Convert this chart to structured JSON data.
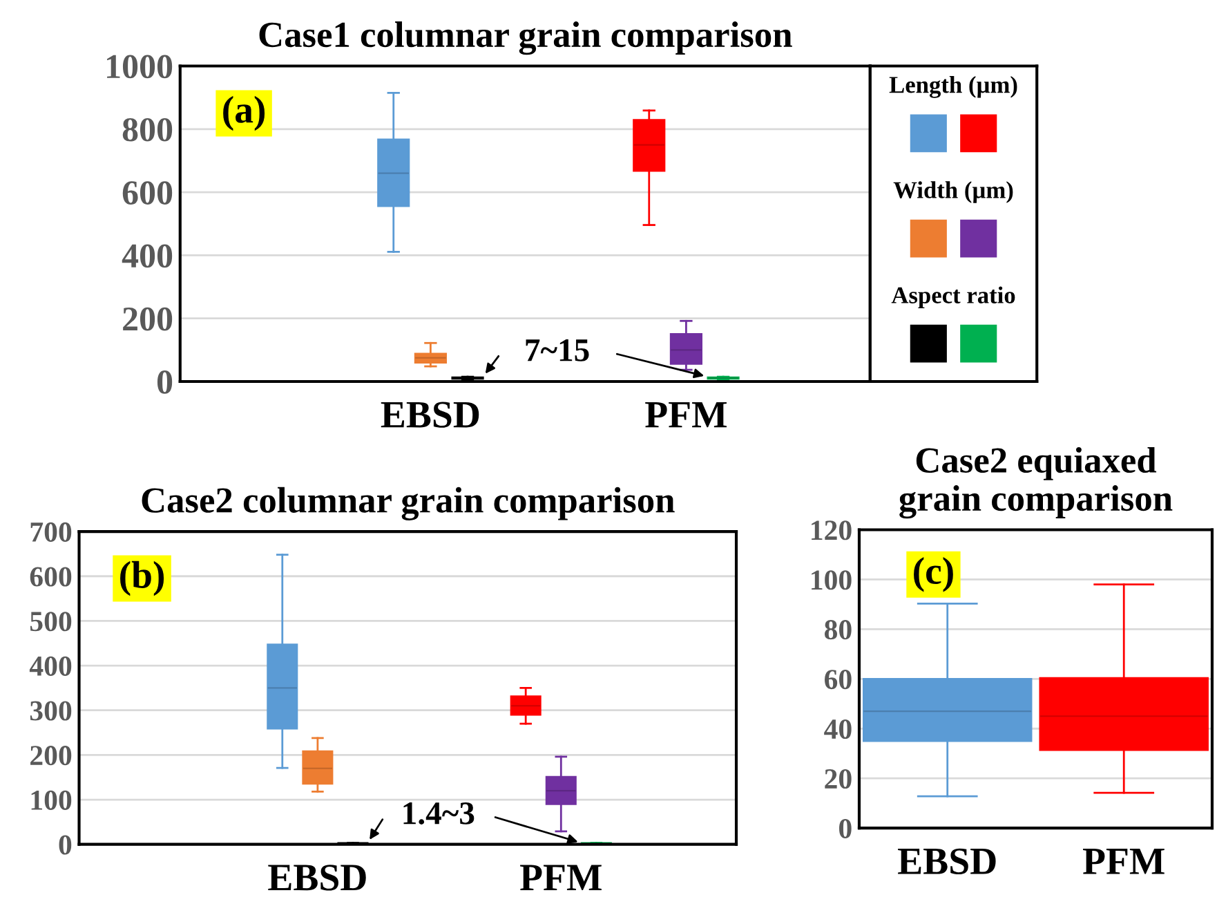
{
  "chart_data": [
    {
      "type": "box",
      "title": "Case1 columnar grain comparison",
      "categories": [
        "EBSD",
        "PFM"
      ],
      "ylim": [
        0,
        1000
      ],
      "yticks": [
        0,
        200,
        400,
        600,
        800,
        1000
      ],
      "grid": "y",
      "legend": "right",
      "annotations": [
        "(a)",
        "7~15"
      ],
      "series": [
        {
          "name": "Length (µm)",
          "colors": [
            "#5b9bd5",
            "#ff0000"
          ],
          "boxes": [
            {
              "low": 411,
              "q1": 556,
              "median": 660,
              "q3": 767,
              "high": 915
            },
            {
              "low": 496,
              "q1": 668,
              "median": 750,
              "q3": 829,
              "high": 859
            }
          ]
        },
        {
          "name": "Width (µm)",
          "colors": [
            "#ed7d31",
            "#7030a0"
          ],
          "boxes": [
            {
              "low": 48,
              "q1": 60,
              "median": 75,
              "q3": 88,
              "high": 122
            },
            {
              "low": 37,
              "q1": 56,
              "median": 100,
              "q3": 150,
              "high": 192
            }
          ]
        },
        {
          "name": "Aspect ratio",
          "colors": [
            "#000000",
            "#00b050"
          ],
          "boxes": [
            {
              "low": 7,
              "q1": 9,
              "median": 11,
              "q3": 13,
              "high": 15
            },
            {
              "low": 7,
              "q1": 9,
              "median": 11,
              "q3": 13,
              "high": 15
            }
          ]
        }
      ]
    },
    {
      "type": "box",
      "title": "Case2 columnar grain comparison",
      "categories": [
        "EBSD",
        "PFM"
      ],
      "ylim": [
        0,
        700
      ],
      "yticks": [
        0,
        100,
        200,
        300,
        400,
        500,
        600,
        700
      ],
      "grid": "y",
      "annotations": [
        "(b)",
        "1.4~3"
      ],
      "series": [
        {
          "colors": [
            "#5b9bd5",
            "#ff0000"
          ],
          "boxes": [
            {
              "low": 171,
              "q1": 259,
              "median": 350,
              "q3": 447,
              "high": 648
            },
            {
              "low": 270,
              "q1": 290,
              "median": 310,
              "q3": 331,
              "high": 350
            }
          ]
        },
        {
          "colors": [
            "#ed7d31",
            "#7030a0"
          ],
          "boxes": [
            {
              "low": 118,
              "q1": 136,
              "median": 170,
              "q3": 208,
              "high": 238
            },
            {
              "low": 29,
              "q1": 90,
              "median": 120,
              "q3": 151,
              "high": 196
            }
          ]
        },
        {
          "colors": [
            "#000000",
            "#00b050"
          ],
          "boxes": [
            {
              "low": 1.4,
              "q1": 1.8,
              "median": 2.2,
              "q3": 2.6,
              "high": 3
            },
            {
              "low": 1.4,
              "q1": 1.8,
              "median": 2.2,
              "q3": 2.6,
              "high": 3
            }
          ]
        }
      ]
    },
    {
      "type": "box",
      "title": "Case2 equiaxed grain comparison",
      "categories": [
        "EBSD",
        "PFM"
      ],
      "ylim": [
        0,
        120
      ],
      "yticks": [
        0,
        20,
        40,
        60,
        80,
        100,
        120
      ],
      "grid": "y",
      "annotations": [
        "(c)"
      ],
      "colors": [
        "#5b9bd5",
        "#ff0000"
      ],
      "boxes": [
        {
          "low": 12.8,
          "q1": 35,
          "median": 47,
          "q3": 60,
          "high": 90.3
        },
        {
          "low": 14.2,
          "q1": 31.4,
          "median": 45,
          "q3": 60.3,
          "high": 98
        }
      ]
    }
  ]
}
